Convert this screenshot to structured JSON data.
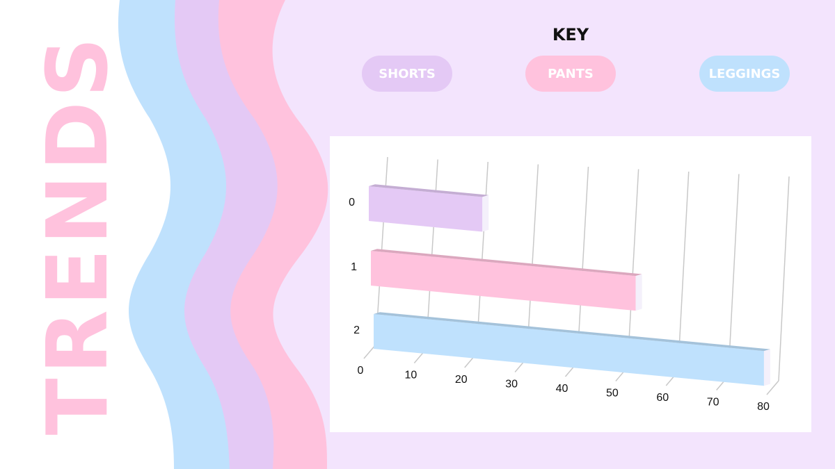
{
  "title": "TRENDS",
  "key": {
    "title": "KEY",
    "items": [
      {
        "label": "SHORTS",
        "color": "#e4c9f5"
      },
      {
        "label": "PANTS",
        "color": "#ffc2dd"
      },
      {
        "label": "LEGGINGS",
        "color": "#bfe1fd"
      }
    ]
  },
  "colors": {
    "background": "#f3e4fd",
    "wave_blue": "#bfe1fd",
    "wave_purple": "#e4c9f5",
    "wave_pink": "#ffc2dd"
  },
  "chart_data": {
    "type": "bar",
    "orientation": "horizontal",
    "categories": [
      "0",
      "1",
      "2"
    ],
    "values": [
      20,
      50,
      75
    ],
    "bar_colors": [
      "#e4c9f5",
      "#ffc2dd",
      "#bfe1fd"
    ],
    "xticks": [
      "0",
      "10",
      "20",
      "30",
      "40",
      "50",
      "60",
      "70",
      "80"
    ],
    "xlim": [
      0,
      80
    ],
    "grid": true
  }
}
